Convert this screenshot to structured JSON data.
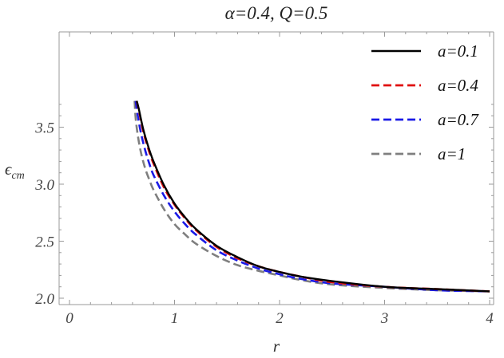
{
  "chart_data": {
    "type": "line",
    "title": "α=0.4, Q=0.5",
    "xlabel": "r",
    "ylabel_main": "ϵ",
    "ylabel_sub": "cm",
    "xlim": [
      0,
      4
    ],
    "ylim": [
      2.0,
      3.75
    ],
    "x_ticks": [
      0,
      1,
      2,
      3,
      4
    ],
    "x_tick_labels": [
      "0",
      "1",
      "2",
      "3",
      "4"
    ],
    "y_ticks": [
      2.0,
      2.5,
      3.0,
      3.5
    ],
    "y_tick_labels": [
      "2.0",
      "2.5",
      "3.0",
      "3.5"
    ],
    "grid": false,
    "legend_position": "top-right",
    "series": [
      {
        "name": "a=0.1",
        "color": "#000000",
        "dash": "solid",
        "x": [
          0.64,
          0.66,
          0.7,
          0.75,
          0.8,
          0.9,
          1.0,
          1.1,
          1.2,
          1.4,
          1.6,
          1.8,
          2.0,
          2.2,
          2.5,
          3.0,
          3.5,
          4.0
        ],
        "y": [
          3.73,
          3.66,
          3.49,
          3.33,
          3.2,
          2.99,
          2.83,
          2.71,
          2.61,
          2.46,
          2.36,
          2.28,
          2.23,
          2.19,
          2.15,
          2.1,
          2.08,
          2.06
        ]
      },
      {
        "name": "a=0.4",
        "color": "#e01010",
        "dash": "dashed",
        "x": [
          0.64,
          0.66,
          0.7,
          0.75,
          0.8,
          0.9,
          1.0,
          1.1,
          1.2,
          1.4,
          1.6,
          1.8,
          2.0,
          2.2,
          2.5,
          3.0,
          3.5,
          4.0
        ],
        "y": [
          3.73,
          3.65,
          3.47,
          3.31,
          3.18,
          2.97,
          2.82,
          2.7,
          2.6,
          2.45,
          2.35,
          2.28,
          2.23,
          2.19,
          2.14,
          2.1,
          2.08,
          2.06
        ]
      },
      {
        "name": "a=0.7",
        "color": "#1a1ae6",
        "dash": "dashed",
        "x": [
          0.63,
          0.65,
          0.68,
          0.72,
          0.76,
          0.8,
          0.9,
          1.0,
          1.1,
          1.2,
          1.4,
          1.6,
          1.8,
          2.0,
          2.2,
          2.5,
          3.0,
          3.5,
          4.0
        ],
        "y": [
          3.73,
          3.6,
          3.45,
          3.3,
          3.18,
          3.08,
          2.9,
          2.76,
          2.65,
          2.56,
          2.42,
          2.33,
          2.26,
          2.21,
          2.17,
          2.13,
          2.1,
          2.07,
          2.06
        ]
      },
      {
        "name": "a=1",
        "color": "#7f7f7f",
        "dash": "dashed",
        "x": [
          0.62,
          0.63,
          0.65,
          0.68,
          0.72,
          0.76,
          0.8,
          0.9,
          1.0,
          1.1,
          1.2,
          1.4,
          1.6,
          1.8,
          2.0,
          2.2,
          2.5,
          3.0,
          3.5,
          4.0
        ],
        "y": [
          3.73,
          3.58,
          3.43,
          3.28,
          3.14,
          3.04,
          2.95,
          2.78,
          2.65,
          2.56,
          2.48,
          2.37,
          2.29,
          2.24,
          2.2,
          2.16,
          2.12,
          2.09,
          2.07,
          2.06
        ]
      }
    ]
  }
}
